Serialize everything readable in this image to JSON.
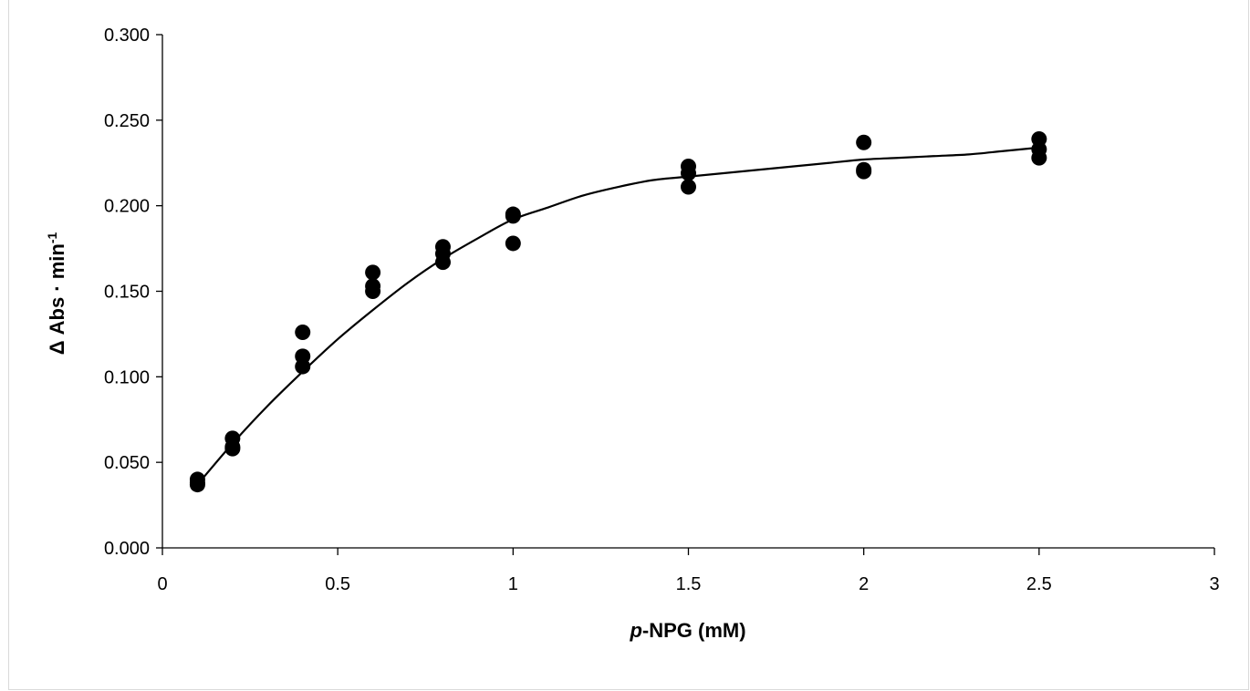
{
  "chart_data": {
    "type": "scatter",
    "title": "",
    "xlabel_prefix": "p",
    "xlabel_rest": "-NPG (mM)",
    "ylabel_main": "Δ Abs · min",
    "ylabel_sup": "-1",
    "xlim": [
      0,
      3
    ],
    "ylim": [
      0,
      0.3
    ],
    "x_ticks": [
      "0",
      "0.5",
      "1",
      "1.5",
      "2",
      "2.5",
      "3"
    ],
    "y_ticks": [
      "0.000",
      "0.050",
      "0.100",
      "0.150",
      "0.200",
      "0.250",
      "0.300"
    ],
    "grid": false,
    "legend": "none",
    "marker_color": "#000000",
    "points": [
      {
        "x": 0.1,
        "y": 0.04
      },
      {
        "x": 0.1,
        "y": 0.038
      },
      {
        "x": 0.1,
        "y": 0.037
      },
      {
        "x": 0.2,
        "y": 0.064
      },
      {
        "x": 0.2,
        "y": 0.059
      },
      {
        "x": 0.2,
        "y": 0.058
      },
      {
        "x": 0.4,
        "y": 0.126
      },
      {
        "x": 0.4,
        "y": 0.112
      },
      {
        "x": 0.4,
        "y": 0.106
      },
      {
        "x": 0.6,
        "y": 0.161
      },
      {
        "x": 0.6,
        "y": 0.153
      },
      {
        "x": 0.6,
        "y": 0.15
      },
      {
        "x": 0.8,
        "y": 0.176
      },
      {
        "x": 0.8,
        "y": 0.172
      },
      {
        "x": 0.8,
        "y": 0.167
      },
      {
        "x": 1.0,
        "y": 0.195
      },
      {
        "x": 1.0,
        "y": 0.194
      },
      {
        "x": 1.0,
        "y": 0.178
      },
      {
        "x": 1.5,
        "y": 0.223
      },
      {
        "x": 1.5,
        "y": 0.219
      },
      {
        "x": 1.5,
        "y": 0.211
      },
      {
        "x": 2.0,
        "y": 0.237
      },
      {
        "x": 2.0,
        "y": 0.221
      },
      {
        "x": 2.0,
        "y": 0.22
      },
      {
        "x": 2.5,
        "y": 0.239
      },
      {
        "x": 2.5,
        "y": 0.233
      },
      {
        "x": 2.5,
        "y": 0.228
      }
    ],
    "fit_curve": [
      {
        "x": 0.1,
        "y": 0.037
      },
      {
        "x": 0.2,
        "y": 0.061
      },
      {
        "x": 0.3,
        "y": 0.083
      },
      {
        "x": 0.4,
        "y": 0.103
      },
      {
        "x": 0.5,
        "y": 0.122
      },
      {
        "x": 0.6,
        "y": 0.139
      },
      {
        "x": 0.7,
        "y": 0.155
      },
      {
        "x": 0.8,
        "y": 0.169
      },
      {
        "x": 0.9,
        "y": 0.181
      },
      {
        "x": 1.0,
        "y": 0.192
      },
      {
        "x": 1.1,
        "y": 0.199
      },
      {
        "x": 1.2,
        "y": 0.206
      },
      {
        "x": 1.3,
        "y": 0.211
      },
      {
        "x": 1.4,
        "y": 0.215
      },
      {
        "x": 1.5,
        "y": 0.217
      },
      {
        "x": 1.6,
        "y": 0.219
      },
      {
        "x": 1.7,
        "y": 0.221
      },
      {
        "x": 1.8,
        "y": 0.223
      },
      {
        "x": 1.9,
        "y": 0.225
      },
      {
        "x": 2.0,
        "y": 0.227
      },
      {
        "x": 2.1,
        "y": 0.228
      },
      {
        "x": 2.2,
        "y": 0.229
      },
      {
        "x": 2.3,
        "y": 0.23
      },
      {
        "x": 2.4,
        "y": 0.232
      },
      {
        "x": 2.5,
        "y": 0.234
      }
    ]
  }
}
